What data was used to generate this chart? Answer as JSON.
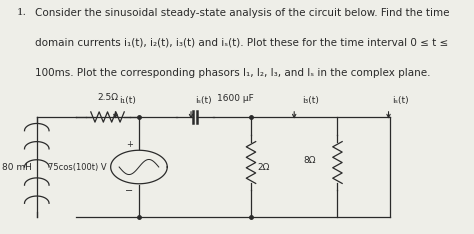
{
  "bg_color": "#eeeee8",
  "text_color": "#1a1a1a",
  "line_color": "#2a2a2a",
  "title_number": "1.",
  "problem_text_line1": "Consider the sinusoidal steady-state analysis of the circuit below. Find the time",
  "problem_text_line2": "domain currents i₁(t), i₂(t), i₃(t) and iₛ(t). Plot these for the time interval 0 ≤ t ≤",
  "problem_text_line3": "100ms. Plot the corresponding phasors I₁, I₂, I₃, and Iₛ in the complex plane.",
  "circuit": {
    "inductor_label": "80 mH",
    "resistor1_label": "2.5Ω",
    "source_label": "75cos(100t) V",
    "cap_label": "1600 μF",
    "resistor2_label": "2Ω",
    "resistor3_label": "8Ω",
    "i1_label": "i₁(t)",
    "is_label": "iₛ(t)",
    "i3_label": "i₃(t)",
    "i5_label": "iₛ(t)"
  },
  "font_size_text": 7.5,
  "font_size_label": 6.5,
  "font_size_component": 6.5
}
